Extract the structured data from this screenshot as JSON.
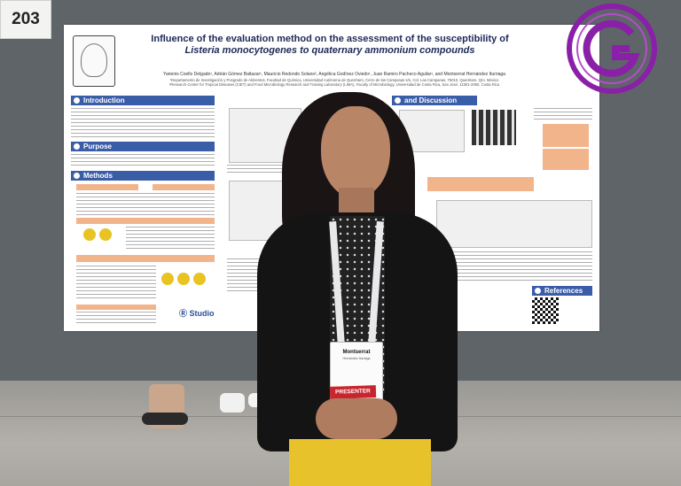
{
  "booth": {
    "number": "203"
  },
  "poster": {
    "title_line1": "Influence of the evaluation method on the assessment of the susceptibility of",
    "title_line2": "Listeria monocytogenes to quaternary ammonium compounds",
    "authors": "Yarienis Coello Delgado¹, Adrián Gómez Baltazar¹, Mauricio Redondo Solano², Angélica Godínez Oviedo¹, Juan Ramiro Pacheco Aguilar¹, and Montserrat Hernández Iturriaga",
    "affiliation1": "¹Departamento de Investigación y Posgrado de Alimentos, Facultad de Química, Universidad Autónoma de Querétaro, Cerro de las Campanas s/n, Col. Las Campanas, 76010, Querétaro, Qro. México",
    "affiliation2": "²Research Center for Tropical Diseases (CIET) and Food Microbiology Research and Training Laboratory (LIMA), Faculty of Microbiology, Universidad de Costa Rica, San José, 11501-2060, Costa Rica",
    "sections": {
      "introduction": "Introduction",
      "purpose": "Purpose",
      "methods": "Methods",
      "discussion": "and Discussion",
      "references": "References"
    },
    "studio": "Studio"
  },
  "badge": {
    "name": "Montserrat",
    "subtitle": "Hernández Iturriaga",
    "ribbon": "PRESENTER"
  },
  "colors": {
    "section_blue": "#3a5da8",
    "accent_orange": "#f2b58b",
    "pants_yellow": "#e7c22a",
    "watermark_purple": "#8a1fa8"
  }
}
